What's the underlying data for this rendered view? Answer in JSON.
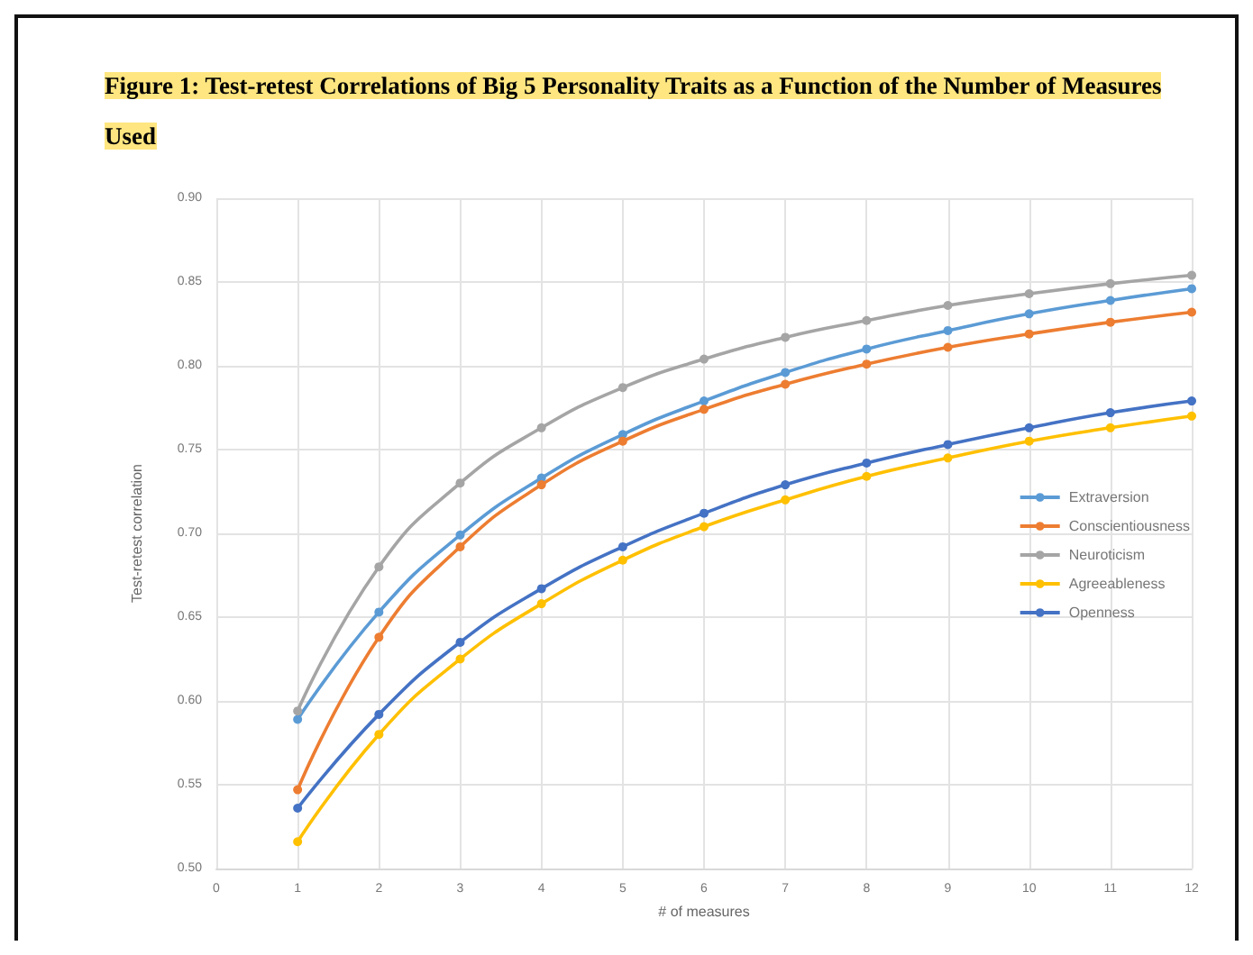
{
  "chart_data": {
    "type": "line",
    "title": "Figure 1:  Test-retest Correlations of Big 5 Personality Traits as a Function of the Number of Measures Used",
    "xlabel": "# of measures",
    "ylabel": "Test-retest correlation",
    "x": [
      1,
      2,
      3,
      4,
      5,
      6,
      7,
      8,
      9,
      10,
      11,
      12
    ],
    "series": [
      {
        "name": "Extraversion",
        "color": "#5b9bd5",
        "values": [
          0.589,
          0.653,
          0.699,
          0.733,
          0.759,
          0.779,
          0.796,
          0.81,
          0.821,
          0.831,
          0.839,
          0.846
        ]
      },
      {
        "name": "Conscientiousness",
        "color": "#ed7d31",
        "values": [
          0.547,
          0.638,
          0.692,
          0.729,
          0.755,
          0.774,
          0.789,
          0.801,
          0.811,
          0.819,
          0.826,
          0.832
        ]
      },
      {
        "name": "Neuroticism",
        "color": "#a5a5a5",
        "values": [
          0.594,
          0.68,
          0.73,
          0.763,
          0.787,
          0.804,
          0.817,
          0.827,
          0.836,
          0.843,
          0.849,
          0.854
        ]
      },
      {
        "name": "Agreeableness",
        "color": "#ffc000",
        "values": [
          0.516,
          0.58,
          0.625,
          0.658,
          0.684,
          0.704,
          0.72,
          0.734,
          0.745,
          0.755,
          0.763,
          0.77
        ]
      },
      {
        "name": "Openness",
        "color": "#4472c4",
        "values": [
          0.536,
          0.592,
          0.635,
          0.667,
          0.692,
          0.712,
          0.729,
          0.742,
          0.753,
          0.763,
          0.772,
          0.779
        ]
      }
    ],
    "xlim": [
      0,
      12
    ],
    "xticks": [
      0,
      1,
      2,
      3,
      4,
      5,
      6,
      7,
      8,
      9,
      10,
      11,
      12
    ],
    "ylim": [
      0.5,
      0.9
    ],
    "yticks": [
      {
        "value": 0.5,
        "label": "0.50"
      },
      {
        "value": 0.55,
        "label": "0.55"
      },
      {
        "value": 0.6,
        "label": "0.60"
      },
      {
        "value": 0.65,
        "label": "0.65"
      },
      {
        "value": 0.7,
        "label": "0.70"
      },
      {
        "value": 0.75,
        "label": "0.75"
      },
      {
        "value": 0.8,
        "label": "0.80"
      },
      {
        "value": 0.85,
        "label": "0.85"
      },
      {
        "value": 0.9,
        "label": "0.90"
      }
    ],
    "grid": true,
    "legend": "right",
    "marker": "circle",
    "line_style": "solid"
  }
}
